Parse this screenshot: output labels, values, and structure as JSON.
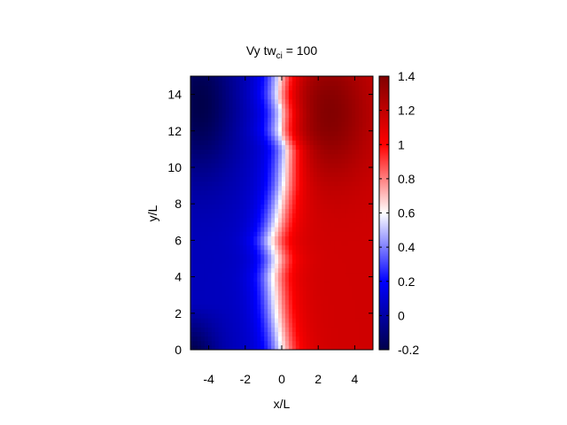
{
  "chart_data": {
    "type": "heatmap",
    "title_main": "Vy tw",
    "title_sub": "ci",
    "title_tail": " =  100",
    "xlabel": "x/L",
    "ylabel": "y/L",
    "xlim": [
      -5,
      5
    ],
    "ylim": [
      0,
      15
    ],
    "xticks": [
      -4,
      -2,
      0,
      2,
      4
    ],
    "yticks": [
      0,
      2,
      4,
      6,
      8,
      10,
      12,
      14
    ],
    "colorbar": {
      "range": [
        -0.2,
        1.4
      ],
      "ticks": [
        "-0.2",
        "0",
        "0.2",
        "0.4",
        "0.6",
        "0.8",
        "1",
        "1.2",
        "1.4"
      ],
      "colors": [
        "#00004a",
        "#0000ff",
        "#ffffff",
        "#ff0000",
        "#800000"
      ]
    },
    "neutral_line_x": [
      [
        0,
        0.0
      ],
      [
        2,
        -0.3
      ],
      [
        4,
        -0.5
      ],
      [
        5,
        -0.3
      ],
      [
        6,
        -0.6
      ],
      [
        7,
        -0.3
      ],
      [
        8,
        -0.1
      ],
      [
        9,
        0.1
      ],
      [
        10,
        0.2
      ],
      [
        11,
        0.3
      ],
      [
        12,
        -0.1
      ],
      [
        13,
        0.0
      ],
      [
        14,
        -0.2
      ],
      [
        15,
        -0.1
      ]
    ],
    "extrema": {
      "min_level": -0.2,
      "max_level": 1.4,
      "min_location": [
        -4.5,
        13.5
      ],
      "max_location": [
        2.5,
        13
      ]
    }
  }
}
